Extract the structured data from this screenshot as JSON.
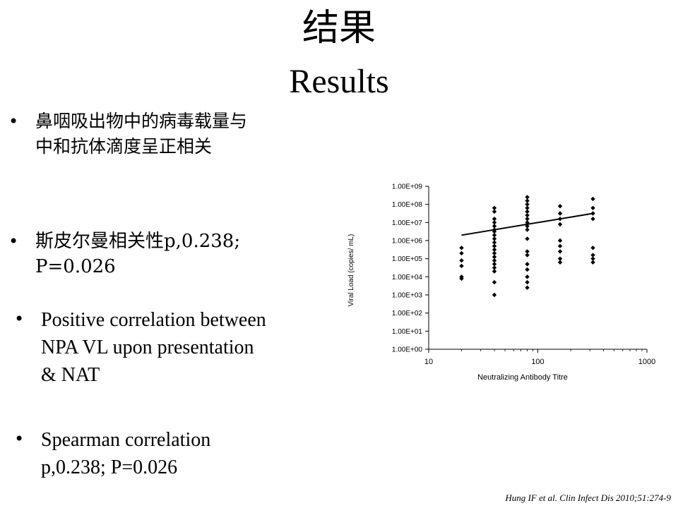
{
  "slide": {
    "title_cn": "结果",
    "title_en": "Results",
    "bullet_glyph": "•",
    "bullets": [
      "鼻咽吸出物中的病毒载量与中和抗体滴度呈正相关",
      "斯皮尔曼相关性p,0.238; P=0.026",
      "Positive correlation between NPA VL upon presentation & NAT",
      "Spearman correlation p,0.238; P=0.026"
    ],
    "citation": "Hung IF et al. Clin Infect Dis 2010;51:274-9"
  },
  "chart_data": {
    "type": "scatter",
    "title": "",
    "xlabel": "Neutralizing Antibody Titre",
    "ylabel": "Viral Load  (copies/ mL)",
    "xscale": "log",
    "yscale": "log",
    "xlim": [
      10,
      1000
    ],
    "ylim": [
      0,
      9
    ],
    "x_ticks": [
      "10",
      "100",
      "1000"
    ],
    "y_ticks": [
      "1.00E+00",
      "1.00E+01",
      "1.00E+02",
      "1.00E+03",
      "1.00E+04",
      "1.00E+05",
      "1.00E+06",
      "1.00E+07",
      "1.00E+08",
      "1.00E+09"
    ],
    "grid": false,
    "legend": "none",
    "marker_color": "#000000",
    "points": [
      {
        "titre": 20,
        "log_vl": [
          5.6,
          5.3,
          4.9,
          4.6,
          4.0,
          3.9
        ]
      },
      {
        "titre": 40,
        "log_vl": [
          7.8,
          7.6,
          7.2,
          7.0,
          6.8,
          6.6,
          6.5,
          6.3,
          6.1,
          5.9,
          5.7,
          5.5,
          5.3,
          5.1,
          4.9,
          4.7,
          4.5,
          4.3,
          3.7,
          3.0
        ]
      },
      {
        "titre": 80,
        "log_vl": [
          8.4,
          8.2,
          8.0,
          7.8,
          7.6,
          7.4,
          7.2,
          7.0,
          6.8,
          6.6,
          6.1,
          5.4,
          5.2,
          4.7,
          4.4,
          4.0,
          3.7,
          3.4
        ]
      },
      {
        "titre": 160,
        "log_vl": [
          7.9,
          7.5,
          7.2,
          6.9,
          6.0,
          5.7,
          5.4,
          5.0,
          4.8
        ]
      },
      {
        "titre": 320,
        "log_vl": [
          8.3,
          7.8,
          7.5,
          7.2,
          5.6,
          5.2,
          5.0,
          4.8
        ]
      }
    ],
    "regression": {
      "x": [
        20,
        320
      ],
      "log_vl": [
        6.3,
        7.5
      ]
    }
  }
}
